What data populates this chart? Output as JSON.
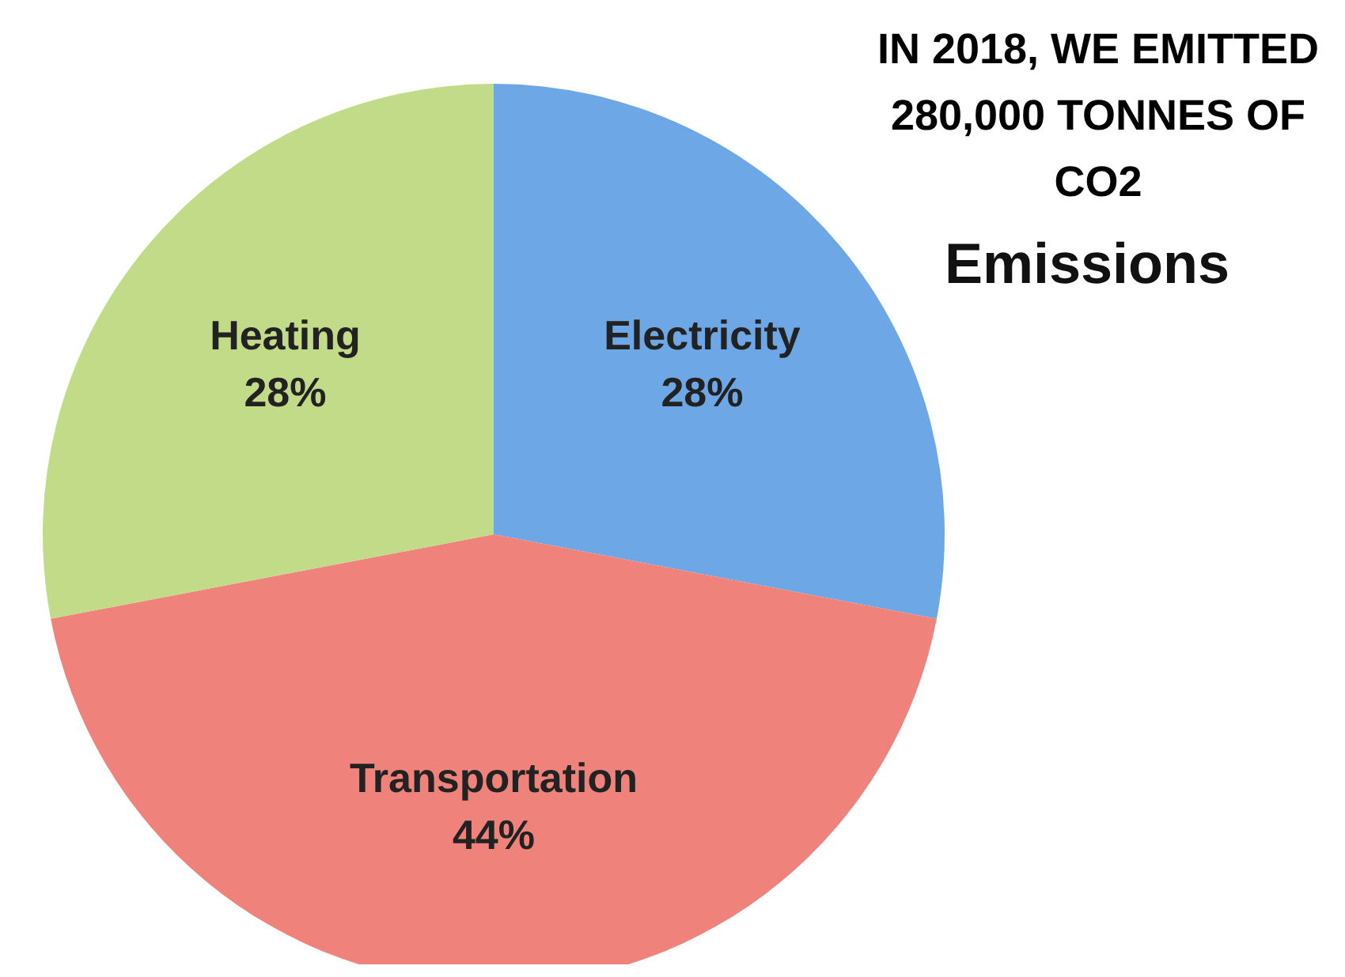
{
  "chart_data": {
    "type": "pie",
    "title": "IN 2018, WE EMITTED 280,000 TONNES OF CO2",
    "subtitle": "Emissions",
    "categories": [
      "Electricity",
      "Transportation",
      "Heating"
    ],
    "values": [
      28,
      44,
      28
    ],
    "value_labels": [
      "28%",
      "44%",
      "28%"
    ],
    "colors": [
      "#6ea7e6",
      "#ef837c",
      "#c2db89"
    ],
    "legend": false
  }
}
